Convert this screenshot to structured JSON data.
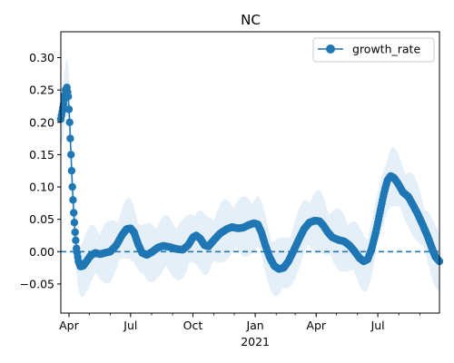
{
  "chart_data": {
    "type": "line",
    "title": "NC",
    "xlabel": "",
    "ylabel": "",
    "x_range": [
      "2020-03-20",
      "2021-09-30"
    ],
    "ylim": [
      -0.095,
      0.34
    ],
    "x_ticks": [
      {
        "date": "2020-04-01",
        "label": "Apr"
      },
      {
        "date": "2020-07-01",
        "label": "Jul"
      },
      {
        "date": "2020-10-01",
        "label": "Oct"
      },
      {
        "date": "2021-01-01",
        "label": "Jan"
      },
      {
        "date": "2021-04-01",
        "label": "Apr"
      },
      {
        "date": "2021-07-01",
        "label": "Jul"
      }
    ],
    "x_year_label": {
      "date": "2021-01-01",
      "label": "2021"
    },
    "y_ticks": [
      {
        "value": 0.3,
        "label": "0.30"
      },
      {
        "value": 0.25,
        "label": "0.25"
      },
      {
        "value": 0.2,
        "label": "0.20"
      },
      {
        "value": 0.15,
        "label": "0.15"
      },
      {
        "value": 0.1,
        "label": "0.10"
      },
      {
        "value": 0.05,
        "label": "0.05"
      },
      {
        "value": 0.0,
        "label": "0.00"
      },
      {
        "value": -0.05,
        "label": "−0.05"
      }
    ],
    "reference_line": {
      "value": 0.0,
      "style": "dashed"
    },
    "legend": {
      "position": "upper right",
      "entries": [
        "growth_rate"
      ]
    },
    "colors": {
      "series": "#1f77b4",
      "band": "#c6dbef"
    },
    "series": [
      {
        "name": "growth_rate",
        "band_width": 0.03,
        "points": [
          [
            "2020-03-20",
            0.205
          ],
          [
            "2020-03-24",
            0.228
          ],
          [
            "2020-03-27",
            0.25
          ],
          [
            "2020-03-29",
            0.254
          ],
          [
            "2020-03-31",
            0.24
          ],
          [
            "2020-04-02",
            0.2
          ],
          [
            "2020-04-04",
            0.15
          ],
          [
            "2020-04-06",
            0.1
          ],
          [
            "2020-04-08",
            0.06
          ],
          [
            "2020-04-10",
            0.03
          ],
          [
            "2020-04-12",
            0.005
          ],
          [
            "2020-04-15",
            -0.015
          ],
          [
            "2020-04-18",
            -0.023
          ],
          [
            "2020-04-22",
            -0.022
          ],
          [
            "2020-04-27",
            -0.015
          ],
          [
            "2020-05-03",
            -0.006
          ],
          [
            "2020-05-10",
            -0.002
          ],
          [
            "2020-05-17",
            -0.004
          ],
          [
            "2020-05-24",
            -0.002
          ],
          [
            "2020-06-01",
            0.0
          ],
          [
            "2020-06-10",
            0.01
          ],
          [
            "2020-06-18",
            0.025
          ],
          [
            "2020-06-25",
            0.035
          ],
          [
            "2020-07-01",
            0.036
          ],
          [
            "2020-07-06",
            0.03
          ],
          [
            "2020-07-12",
            0.012
          ],
          [
            "2020-07-18",
            -0.002
          ],
          [
            "2020-07-25",
            -0.005
          ],
          [
            "2020-08-01",
            -0.001
          ],
          [
            "2020-08-10",
            0.006
          ],
          [
            "2020-08-18",
            0.009
          ],
          [
            "2020-08-28",
            0.007
          ],
          [
            "2020-09-07",
            0.004
          ],
          [
            "2020-09-16",
            0.003
          ],
          [
            "2020-09-24",
            0.01
          ],
          [
            "2020-10-01",
            0.022
          ],
          [
            "2020-10-06",
            0.025
          ],
          [
            "2020-10-12",
            0.02
          ],
          [
            "2020-10-18",
            0.01
          ],
          [
            "2020-10-24",
            0.008
          ],
          [
            "2020-11-01",
            0.018
          ],
          [
            "2020-11-10",
            0.028
          ],
          [
            "2020-11-20",
            0.035
          ],
          [
            "2020-11-28",
            0.038
          ],
          [
            "2020-12-06",
            0.036
          ],
          [
            "2020-12-14",
            0.037
          ],
          [
            "2020-12-22",
            0.041
          ],
          [
            "2020-12-30",
            0.044
          ],
          [
            "2021-01-05",
            0.042
          ],
          [
            "2021-01-10",
            0.03
          ],
          [
            "2021-01-16",
            0.01
          ],
          [
            "2021-01-22",
            -0.008
          ],
          [
            "2021-01-29",
            -0.022
          ],
          [
            "2021-02-05",
            -0.027
          ],
          [
            "2021-02-12",
            -0.025
          ],
          [
            "2021-02-19",
            -0.015
          ],
          [
            "2021-02-26",
            0.0
          ],
          [
            "2021-03-06",
            0.018
          ],
          [
            "2021-03-14",
            0.035
          ],
          [
            "2021-03-22",
            0.045
          ],
          [
            "2021-03-30",
            0.048
          ],
          [
            "2021-04-06",
            0.047
          ],
          [
            "2021-04-12",
            0.04
          ],
          [
            "2021-04-18",
            0.03
          ],
          [
            "2021-04-25",
            0.022
          ],
          [
            "2021-05-04",
            0.018
          ],
          [
            "2021-05-12",
            0.016
          ],
          [
            "2021-05-20",
            0.01
          ],
          [
            "2021-05-28",
            0.0
          ],
          [
            "2021-06-04",
            -0.01
          ],
          [
            "2021-06-10",
            -0.015
          ],
          [
            "2021-06-16",
            -0.012
          ],
          [
            "2021-06-22",
            0.005
          ],
          [
            "2021-06-28",
            0.03
          ],
          [
            "2021-07-04",
            0.06
          ],
          [
            "2021-07-10",
            0.09
          ],
          [
            "2021-07-15",
            0.11
          ],
          [
            "2021-07-20",
            0.117
          ],
          [
            "2021-07-25",
            0.114
          ],
          [
            "2021-07-31",
            0.105
          ],
          [
            "2021-08-07",
            0.092
          ],
          [
            "2021-08-15",
            0.085
          ],
          [
            "2021-08-22",
            0.072
          ],
          [
            "2021-08-29",
            0.058
          ],
          [
            "2021-09-05",
            0.042
          ],
          [
            "2021-09-12",
            0.025
          ],
          [
            "2021-09-18",
            0.008
          ],
          [
            "2021-09-24",
            -0.008
          ],
          [
            "2021-09-30",
            -0.015
          ]
        ]
      }
    ]
  }
}
